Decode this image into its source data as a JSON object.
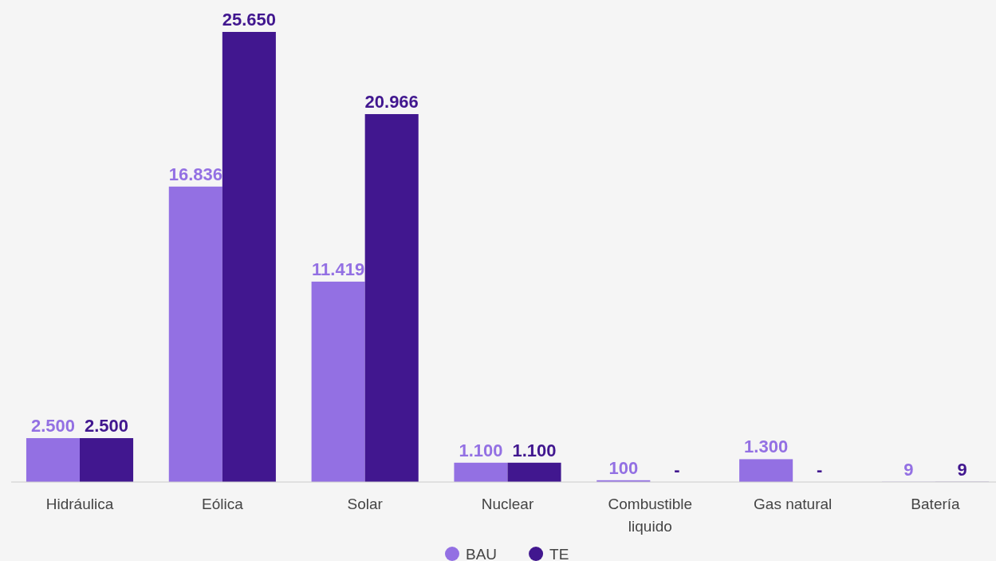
{
  "chart_data": {
    "type": "bar",
    "categories": [
      "Hidráulica",
      "Eólica",
      "Solar",
      "Nuclear",
      "Combustible liquido",
      "Gas natural",
      "Batería"
    ],
    "series": [
      {
        "name": "BAU",
        "color": "#9370e3",
        "values": [
          2500,
          16836,
          11419,
          1100,
          100,
          1300,
          9
        ],
        "value_labels": [
          "2.500",
          "16.836",
          "11.419",
          "1.100",
          "100",
          "1.300",
          "9"
        ]
      },
      {
        "name": "TE",
        "color": "#41178f",
        "values": [
          2500,
          25650,
          20966,
          1100,
          null,
          null,
          9
        ],
        "value_labels": [
          "2.500",
          "25.650",
          "20.966",
          "1.100",
          "-",
          "-",
          "9"
        ]
      }
    ],
    "legend": "bottom"
  }
}
